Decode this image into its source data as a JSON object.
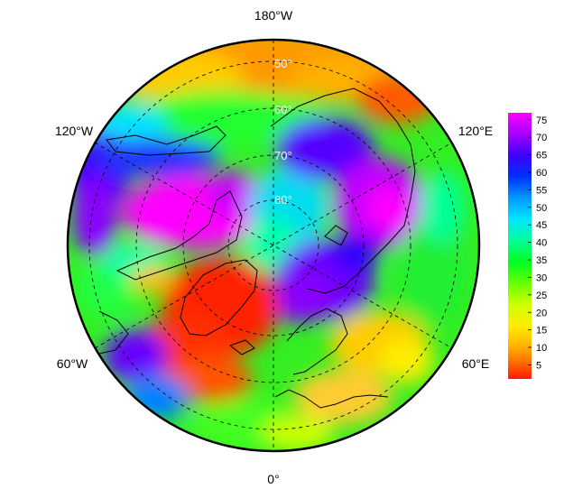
{
  "map": {
    "projection": "north-polar-stereographic",
    "center_latitude": 90,
    "boundary_latitude": 45,
    "longitude_labels": [
      {
        "id": "lon-180w",
        "text": "180°W"
      },
      {
        "id": "lon-120w",
        "text": "120°W"
      },
      {
        "id": "lon-120e",
        "text": "120°E"
      },
      {
        "id": "lon-60w",
        "text": "60°W"
      },
      {
        "id": "lon-60e",
        "text": "60°E"
      },
      {
        "id": "lon-0",
        "text": "0°"
      }
    ],
    "latitude_labels": [
      {
        "id": "lat-50",
        "text": "50°"
      },
      {
        "id": "lat-60",
        "text": "60°"
      },
      {
        "id": "lat-70",
        "text": "70°"
      },
      {
        "id": "lat-80",
        "text": "80°"
      }
    ],
    "graticule": "dashed",
    "field_colormap": "rainbow"
  },
  "colorbar": {
    "ticks": [
      "75",
      "70",
      "65",
      "60",
      "55",
      "50",
      "45",
      "40",
      "35",
      "30",
      "25",
      "20",
      "15",
      "10",
      "5"
    ],
    "min": 1,
    "max": 77,
    "colors_top_to_bottom": [
      "#ff00ff",
      "#a600ff",
      "#3c00ff",
      "#0030ff",
      "#0098ff",
      "#00e6ff",
      "#00ff99",
      "#00ff22",
      "#66ff00",
      "#ccff00",
      "#ffee00",
      "#ffb000",
      "#ff6a00",
      "#ff1a00"
    ]
  }
}
